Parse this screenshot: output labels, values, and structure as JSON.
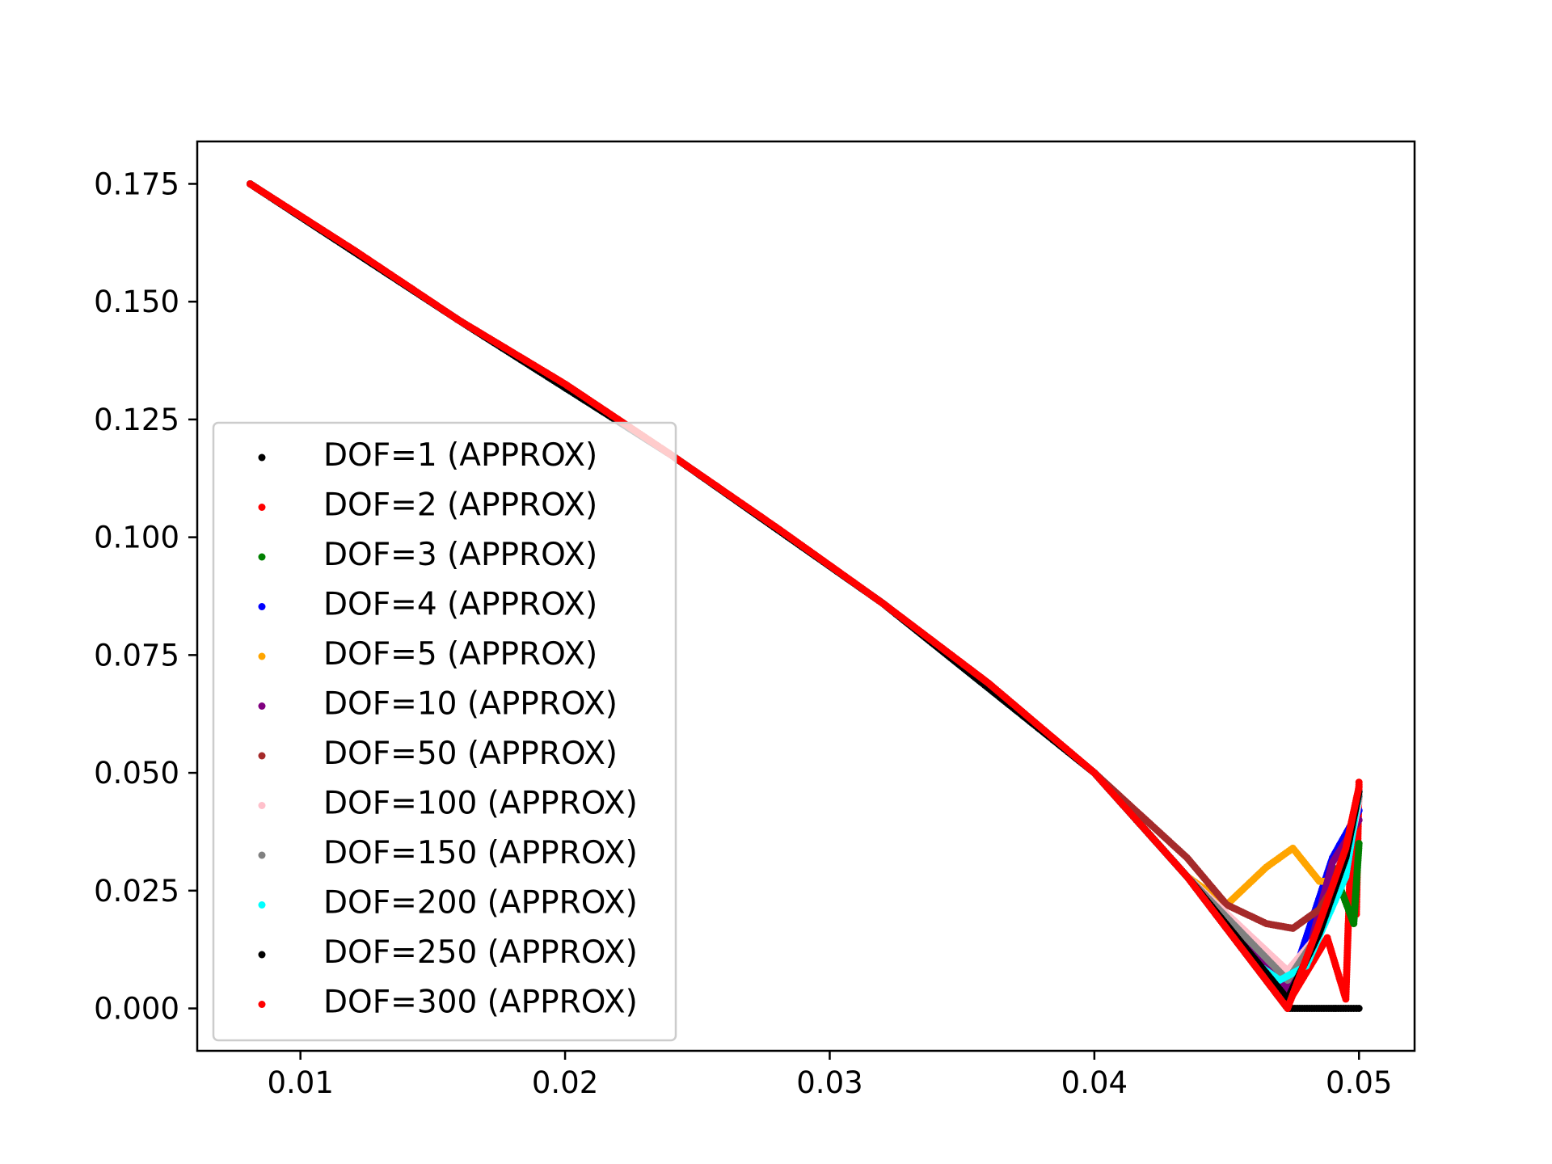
{
  "chart_data": {
    "type": "scatter",
    "title": "",
    "xlabel": "",
    "ylabel": "",
    "xlim": [
      0.0061,
      0.0521
    ],
    "ylim": [
      -0.009,
      0.184
    ],
    "grid": false,
    "legend_position": "center-left",
    "x_ticks": [
      "0.01",
      "0.02",
      "0.03",
      "0.04",
      "0.05"
    ],
    "y_ticks": [
      "0.000",
      "0.025",
      "0.050",
      "0.075",
      "0.100",
      "0.125",
      "0.150",
      "0.175"
    ],
    "series": [
      {
        "name": "DOF=1 (APPROX)",
        "color": "#000000",
        "points": [
          [
            0.0081,
            0.175
          ],
          [
            0.012,
            0.161
          ],
          [
            0.016,
            0.146
          ],
          [
            0.02,
            0.1325
          ],
          [
            0.024,
            0.1175
          ],
          [
            0.028,
            0.102
          ],
          [
            0.032,
            0.086
          ],
          [
            0.036,
            0.069
          ],
          [
            0.04,
            0.05
          ],
          [
            0.0435,
            0.028
          ],
          [
            0.0473,
            0.0
          ],
          [
            0.0495,
            0.0
          ],
          [
            0.05,
            0.0
          ]
        ]
      },
      {
        "name": "DOF=2 (APPROX)",
        "color": "#ff0000",
        "points": [
          [
            0.0081,
            0.175
          ],
          [
            0.012,
            0.161
          ],
          [
            0.016,
            0.146
          ],
          [
            0.02,
            0.1325
          ],
          [
            0.024,
            0.1175
          ],
          [
            0.028,
            0.102
          ],
          [
            0.032,
            0.086
          ],
          [
            0.036,
            0.069
          ],
          [
            0.04,
            0.05
          ],
          [
            0.0435,
            0.028
          ],
          [
            0.0473,
            0.001
          ],
          [
            0.0488,
            0.015
          ],
          [
            0.0495,
            0.002
          ],
          [
            0.0497,
            0.035
          ],
          [
            0.0499,
            0.02
          ],
          [
            0.05,
            0.048
          ]
        ]
      },
      {
        "name": "DOF=3 (APPROX)",
        "color": "#008000",
        "points": [
          [
            0.0081,
            0.175
          ],
          [
            0.016,
            0.146
          ],
          [
            0.024,
            0.1175
          ],
          [
            0.032,
            0.086
          ],
          [
            0.04,
            0.05
          ],
          [
            0.0435,
            0.028
          ],
          [
            0.0473,
            0.002
          ],
          [
            0.049,
            0.03
          ],
          [
            0.0498,
            0.018
          ],
          [
            0.05,
            0.035
          ]
        ]
      },
      {
        "name": "DOF=4 (APPROX)",
        "color": "#0000ff",
        "points": [
          [
            0.0081,
            0.175
          ],
          [
            0.016,
            0.146
          ],
          [
            0.024,
            0.1175
          ],
          [
            0.032,
            0.086
          ],
          [
            0.04,
            0.05
          ],
          [
            0.0435,
            0.028
          ],
          [
            0.0473,
            0.003
          ],
          [
            0.049,
            0.032
          ],
          [
            0.05,
            0.042
          ]
        ]
      },
      {
        "name": "DOF=5 (APPROX)",
        "color": "#ffa500",
        "points": [
          [
            0.0081,
            0.175
          ],
          [
            0.016,
            0.146
          ],
          [
            0.024,
            0.1175
          ],
          [
            0.032,
            0.086
          ],
          [
            0.04,
            0.05
          ],
          [
            0.0435,
            0.028
          ],
          [
            0.045,
            0.022
          ],
          [
            0.0465,
            0.03
          ],
          [
            0.0475,
            0.034
          ],
          [
            0.0485,
            0.027
          ],
          [
            0.049,
            0.027
          ]
        ]
      },
      {
        "name": "DOF=10 (APPROX)",
        "color": "#800080",
        "points": [
          [
            0.0081,
            0.175
          ],
          [
            0.016,
            0.146
          ],
          [
            0.024,
            0.1175
          ],
          [
            0.032,
            0.086
          ],
          [
            0.04,
            0.05
          ],
          [
            0.0435,
            0.028
          ],
          [
            0.0473,
            0.004
          ],
          [
            0.048,
            0.01
          ],
          [
            0.049,
            0.031
          ],
          [
            0.05,
            0.04
          ]
        ]
      },
      {
        "name": "DOF=50 (APPROX)",
        "color": "#a52a2a",
        "points": [
          [
            0.0081,
            0.175
          ],
          [
            0.016,
            0.146
          ],
          [
            0.024,
            0.1175
          ],
          [
            0.032,
            0.086
          ],
          [
            0.04,
            0.05
          ],
          [
            0.0435,
            0.032
          ],
          [
            0.045,
            0.022
          ],
          [
            0.0465,
            0.018
          ],
          [
            0.0475,
            0.017
          ],
          [
            0.0485,
            0.021
          ],
          [
            0.0495,
            0.03
          ],
          [
            0.05,
            0.045
          ]
        ]
      },
      {
        "name": "DOF=100 (APPROX)",
        "color": "#ffc0cb",
        "points": [
          [
            0.0081,
            0.175
          ],
          [
            0.016,
            0.146
          ],
          [
            0.024,
            0.1175
          ],
          [
            0.032,
            0.086
          ],
          [
            0.04,
            0.05
          ],
          [
            0.0435,
            0.028
          ],
          [
            0.0473,
            0.008
          ],
          [
            0.0485,
            0.016
          ],
          [
            0.0495,
            0.03
          ],
          [
            0.05,
            0.044
          ]
        ]
      },
      {
        "name": "DOF=150 (APPROX)",
        "color": "#808080",
        "points": [
          [
            0.0081,
            0.175
          ],
          [
            0.016,
            0.146
          ],
          [
            0.024,
            0.1175
          ],
          [
            0.032,
            0.086
          ],
          [
            0.04,
            0.05
          ],
          [
            0.0435,
            0.028
          ],
          [
            0.0473,
            0.006
          ],
          [
            0.0485,
            0.016
          ],
          [
            0.0495,
            0.032
          ],
          [
            0.05,
            0.045
          ]
        ]
      },
      {
        "name": "DOF=200 (APPROX)",
        "color": "#00ffff",
        "points": [
          [
            0.0081,
            0.175
          ],
          [
            0.016,
            0.146
          ],
          [
            0.024,
            0.1175
          ],
          [
            0.032,
            0.086
          ],
          [
            0.04,
            0.05
          ],
          [
            0.0435,
            0.028
          ],
          [
            0.046,
            0.01
          ],
          [
            0.047,
            0.006
          ],
          [
            0.048,
            0.009
          ],
          [
            0.0495,
            0.028
          ],
          [
            0.05,
            0.046
          ]
        ]
      },
      {
        "name": "DOF=250 (APPROX)",
        "color": "#000000",
        "points": [
          [
            0.0081,
            0.175
          ],
          [
            0.016,
            0.146
          ],
          [
            0.024,
            0.1175
          ],
          [
            0.032,
            0.086
          ],
          [
            0.04,
            0.05
          ],
          [
            0.0435,
            0.028
          ],
          [
            0.0473,
            0.002
          ],
          [
            0.0485,
            0.016
          ],
          [
            0.0495,
            0.032
          ],
          [
            0.05,
            0.046
          ]
        ]
      },
      {
        "name": "DOF=300 (APPROX)",
        "color": "#ff0000",
        "points": [
          [
            0.0081,
            0.175
          ],
          [
            0.012,
            0.161
          ],
          [
            0.016,
            0.146
          ],
          [
            0.02,
            0.1325
          ],
          [
            0.024,
            0.1175
          ],
          [
            0.028,
            0.102
          ],
          [
            0.032,
            0.086
          ],
          [
            0.036,
            0.069
          ],
          [
            0.04,
            0.05
          ],
          [
            0.0435,
            0.028
          ],
          [
            0.0473,
            0.0
          ],
          [
            0.0485,
            0.018
          ],
          [
            0.0495,
            0.034
          ],
          [
            0.05,
            0.047
          ]
        ]
      }
    ]
  }
}
